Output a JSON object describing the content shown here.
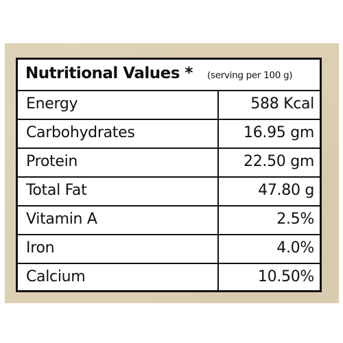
{
  "header": {
    "title": "Nutritional Values *",
    "note": "(serving per 100 g)"
  },
  "rows": [
    {
      "name": "Energy",
      "value": "588 Kcal"
    },
    {
      "name": "Carbohydrates",
      "value": "16.95 gm"
    },
    {
      "name": "Protein",
      "value": "22.50 gm"
    },
    {
      "name": "Total Fat",
      "value": "47.80 g"
    },
    {
      "name": "Vitamin A",
      "value": "2.5%"
    },
    {
      "name": "Iron",
      "value": "4.0%"
    },
    {
      "name": "Calcium",
      "value": "10.50%"
    }
  ],
  "colors": {
    "background": "#dccfb2",
    "table": "#ffffff",
    "ink": "#111111"
  }
}
